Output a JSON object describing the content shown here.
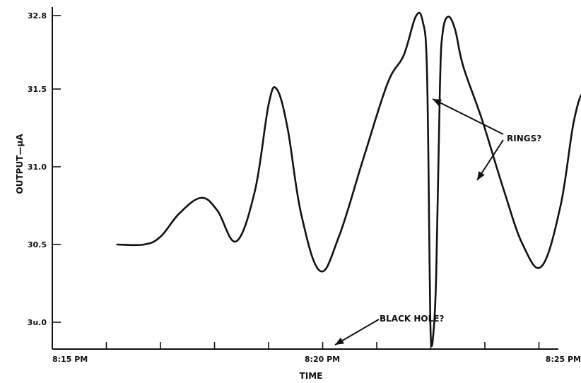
{
  "chart_data": {
    "type": "line",
    "title": "",
    "xlabel": "TIME",
    "ylabel": "OUTPUT—µA",
    "x_ticks": [
      "8:15 PM",
      "8:20 PM",
      "8:25 PM"
    ],
    "y_ticks": [
      "32.8",
      "31.5",
      "31.0",
      "30.5",
      "3u.0"
    ],
    "grid": false,
    "annotations": [
      "RINGS?",
      "BLACK HOLE?"
    ],
    "series": [
      {
        "values": [
          [
            1.2,
            30.5
          ],
          [
            1.7,
            30.5
          ],
          [
            2.0,
            30.55
          ],
          [
            2.35,
            30.7
          ],
          [
            2.75,
            30.8
          ],
          [
            3.05,
            30.72
          ],
          [
            3.4,
            30.52
          ],
          [
            3.75,
            30.85
          ],
          [
            4.0,
            31.4
          ],
          [
            4.15,
            31.5
          ],
          [
            4.35,
            31.25
          ],
          [
            4.6,
            30.7
          ],
          [
            4.95,
            30.33
          ],
          [
            5.3,
            30.55
          ],
          [
            5.75,
            31.05
          ],
          [
            6.2,
            31.6
          ],
          [
            6.5,
            32.1
          ],
          [
            6.72,
            32.78
          ],
          [
            6.85,
            32.7
          ],
          [
            6.93,
            31.8
          ],
          [
            6.98,
            30.3
          ],
          [
            7.0,
            29.8
          ],
          [
            7.04,
            29.8
          ],
          [
            7.1,
            30.3
          ],
          [
            7.17,
            31.6
          ],
          [
            7.22,
            32.5
          ],
          [
            7.32,
            32.78
          ],
          [
            7.45,
            32.55
          ],
          [
            7.6,
            31.9
          ],
          [
            7.95,
            31.3
          ],
          [
            8.35,
            30.85
          ],
          [
            8.7,
            30.5
          ],
          [
            9.05,
            30.36
          ],
          [
            9.4,
            30.75
          ],
          [
            9.65,
            31.3
          ],
          [
            9.85,
            31.48
          ],
          [
            10.05,
            31.3
          ],
          [
            10.35,
            30.6
          ],
          [
            10.55,
            30.52
          ],
          [
            10.8,
            30.65
          ],
          [
            11.0,
            30.85
          ],
          [
            11.2,
            30.8
          ],
          [
            11.45,
            30.58
          ],
          [
            11.9,
            30.49
          ],
          [
            12.2,
            30.49
          ]
        ]
      }
    ]
  }
}
